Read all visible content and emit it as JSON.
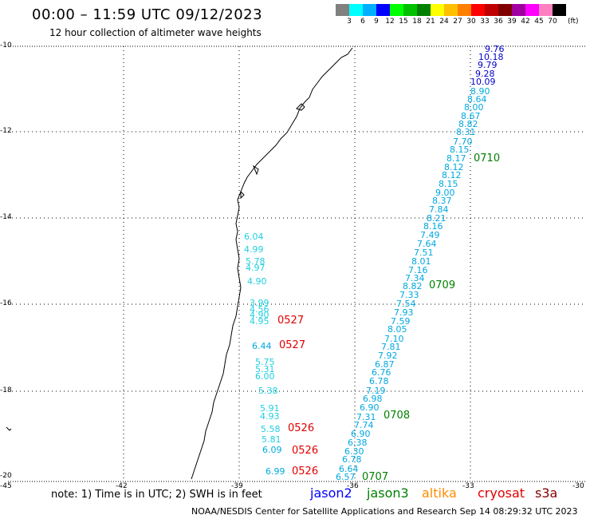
{
  "header": {
    "title": "00:00 – 11:59 UTC 09/12/2023",
    "subtitle": "12 hour collection of altimeter wave heights"
  },
  "scale": {
    "colors": [
      "#808080",
      "#00ffff",
      "#00b0ff",
      "#0000ff",
      "#00ff00",
      "#00c000",
      "#008000",
      "#ffff00",
      "#ffc000",
      "#ff8000",
      "#ff0000",
      "#c00000",
      "#800000",
      "#a000a0",
      "#ff00ff",
      "#ff80c0",
      "#000000"
    ],
    "ticks": [
      "3",
      "6",
      "9",
      "12",
      "15",
      "18",
      "21",
      "24",
      "27",
      "30",
      "33",
      "36",
      "39",
      "42",
      "45",
      "70"
    ],
    "unit": "(ft)"
  },
  "axes": {
    "y_labels": [
      "-10",
      "-12",
      "-14",
      "-16",
      "-18",
      "-20"
    ],
    "x_labels": [
      "-45",
      "-42",
      "-39",
      "-36",
      "-33",
      "-30"
    ]
  },
  "waves": [
    {
      "t": "9.76",
      "c": "#0000c8"
    },
    {
      "t": "10.18",
      "c": "#0000c8"
    },
    {
      "t": "9.79",
      "c": "#0000c8"
    },
    {
      "t": "9.28",
      "c": "#0000c8"
    },
    {
      "t": "10.09",
      "c": "#0000c8"
    },
    {
      "t": "8.90",
      "c": "#00a8e0"
    },
    {
      "t": "8.64",
      "c": "#00a8e0"
    },
    {
      "t": "8.00",
      "c": "#00a8e0"
    },
    {
      "t": "8.67",
      "c": "#00a8e0"
    },
    {
      "t": "8.82",
      "c": "#00a8e0"
    },
    {
      "t": "8.31",
      "c": "#00a8e0"
    },
    {
      "t": "7.70",
      "c": "#00a8e0"
    },
    {
      "t": "8.15",
      "c": "#00a8e0"
    },
    {
      "t": "8.17",
      "c": "#00a8e0"
    },
    {
      "t": "8.12",
      "c": "#00a8e0"
    },
    {
      "t": "8.12",
      "c": "#00a8e0"
    },
    {
      "t": "8.15",
      "c": "#00a8e0"
    },
    {
      "t": "9.00",
      "c": "#00a8e0"
    },
    {
      "t": "8.37",
      "c": "#00a8e0"
    },
    {
      "t": "7.84",
      "c": "#00a8e0"
    },
    {
      "t": "8.21",
      "c": "#00a8e0"
    },
    {
      "t": "8.16",
      "c": "#00a8e0"
    },
    {
      "t": "7.49",
      "c": "#00a8e0"
    },
    {
      "t": "7.64",
      "c": "#00a8e0"
    },
    {
      "t": "7.51",
      "c": "#00a8e0"
    },
    {
      "t": "8.01",
      "c": "#00a8e0"
    },
    {
      "t": "7.16",
      "c": "#00a8e0"
    },
    {
      "t": "7.34",
      "c": "#00a8e0"
    },
    {
      "t": "8.82",
      "c": "#00a8e0"
    },
    {
      "t": "7.33",
      "c": "#00a8e0"
    },
    {
      "t": "7.54",
      "c": "#00a8e0"
    },
    {
      "t": "7.93",
      "c": "#00a8e0"
    },
    {
      "t": "7.59",
      "c": "#00a8e0"
    },
    {
      "t": "8.05",
      "c": "#00a8e0"
    },
    {
      "t": "7.10",
      "c": "#00a8e0"
    },
    {
      "t": "7.81",
      "c": "#00a8e0"
    },
    {
      "t": "7.92",
      "c": "#00a8e0"
    },
    {
      "t": "6.87",
      "c": "#00a8e0"
    },
    {
      "t": "6.76",
      "c": "#00a8e0"
    },
    {
      "t": "6.78",
      "c": "#00a8e0"
    },
    {
      "t": "7.19",
      "c": "#00a8e0"
    },
    {
      "t": "6.98",
      "c": "#00a8e0"
    },
    {
      "t": "6.90",
      "c": "#00a8e0"
    },
    {
      "t": "7.31",
      "c": "#00a8e0"
    },
    {
      "t": "7.74",
      "c": "#00a8e0"
    },
    {
      "t": "6.90",
      "c": "#00a8e0"
    },
    {
      "t": "6.38",
      "c": "#00a8e0"
    },
    {
      "t": "6.30",
      "c": "#00a8e0"
    },
    {
      "t": "6.78",
      "c": "#00a8e0"
    },
    {
      "t": "6.64",
      "c": "#00a8e0"
    },
    {
      "t": "6.57",
      "c": "#00a8e0"
    },
    {
      "t": "6.04",
      "c": "#20d0e0"
    },
    {
      "t": "4.99",
      "c": "#20d0e0"
    },
    {
      "t": "5.78",
      "c": "#20d0e0"
    },
    {
      "t": "4.97",
      "c": "#20d0e0"
    },
    {
      "t": "4.90",
      "c": "#20d0e0"
    },
    {
      "t": "3.99",
      "c": "#20d0e0"
    },
    {
      "t": "4.56",
      "c": "#20d0e0"
    },
    {
      "t": "4.90",
      "c": "#20d0e0"
    },
    {
      "t": "4.95",
      "c": "#20d0e0"
    },
    {
      "t": "6.44",
      "c": "#00a8e0"
    },
    {
      "t": "5.75",
      "c": "#20d0e0"
    },
    {
      "t": "5.31",
      "c": "#20d0e0"
    },
    {
      "t": "6.00",
      "c": "#20d0e0"
    },
    {
      "t": "5.38",
      "c": "#20d0e0"
    },
    {
      "t": "5.91",
      "c": "#20d0e0"
    },
    {
      "t": "4.93",
      "c": "#20d0e0"
    },
    {
      "t": "5.58",
      "c": "#20d0e0"
    },
    {
      "t": "5.81",
      "c": "#20d0e0"
    },
    {
      "t": "6.09",
      "c": "#00a8e0"
    },
    {
      "t": "6.99",
      "c": "#00a8e0"
    }
  ],
  "passes": [
    {
      "t": "0710",
      "c": "#008000"
    },
    {
      "t": "0709",
      "c": "#008000"
    },
    {
      "t": "0708",
      "c": "#008000"
    },
    {
      "t": "0707",
      "c": "#008000"
    },
    {
      "t": "0527",
      "c": "#e00000"
    },
    {
      "t": "0527",
      "c": "#e00000"
    },
    {
      "t": "0526",
      "c": "#e00000"
    },
    {
      "t": "0526",
      "c": "#e00000"
    },
    {
      "t": "0526",
      "c": "#e00000"
    }
  ],
  "note": "note:  1) Time is in UTC;  2) SWH is in feet",
  "satellites": [
    {
      "name": "jason2",
      "color": "#0000ff"
    },
    {
      "name": "jason3",
      "color": "#008000"
    },
    {
      "name": "altika",
      "color": "#ff8c00"
    },
    {
      "name": "cryosat",
      "color": "#e00000"
    },
    {
      "name": "s3a",
      "color": "#800000"
    }
  ],
  "footer": "NOAA/NESDIS Center for Satellite Applications and Research    Sep 14 08:29:32 UTC 2023"
}
